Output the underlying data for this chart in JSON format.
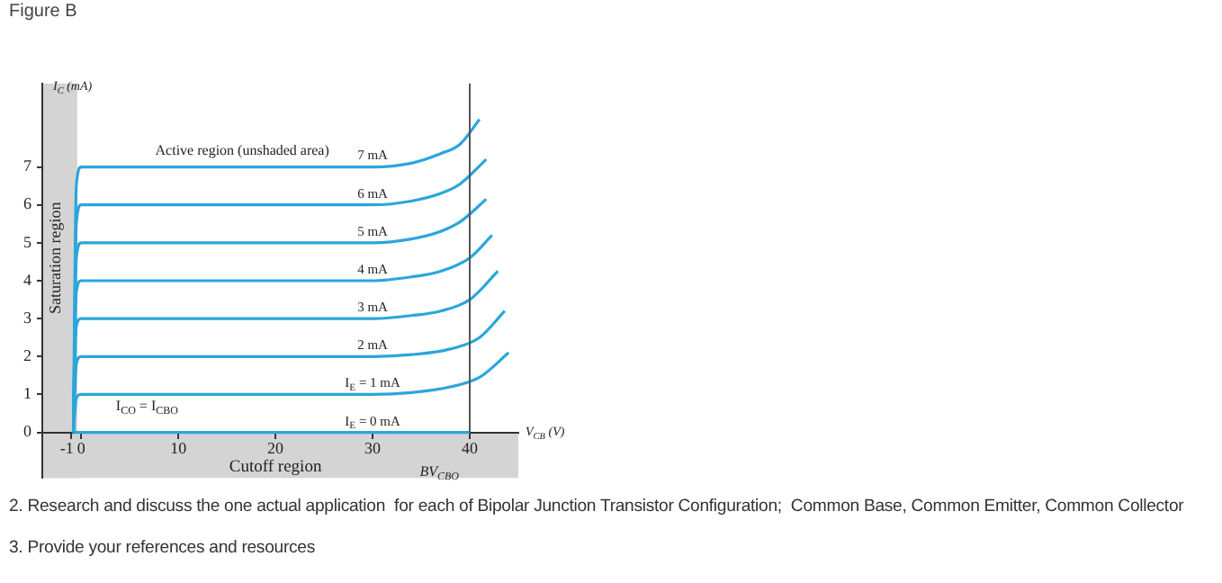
{
  "chart_data": {
    "type": "line",
    "title": "Figure B",
    "xlabel": "V$_{CB}$ (V)",
    "ylabel": "I$_{C}$ (mA)",
    "xlim": [
      -4,
      45
    ],
    "ylim": [
      -1.2,
      9.2
    ],
    "xticks": [
      -1,
      0,
      10,
      20,
      30,
      40
    ],
    "yticks": [
      0,
      1,
      2,
      3,
      4,
      5,
      6,
      7
    ],
    "grid": false,
    "legend": false,
    "marker": "none",
    "line_style": "solid",
    "series": [
      {
        "name": "7 mA",
        "color": "#2aa6dc",
        "x": [
          -0.8,
          -0.5,
          0,
          10,
          20,
          30,
          34,
          37,
          39,
          41
        ],
        "values": [
          0,
          6.5,
          7,
          7,
          7,
          7,
          7.1,
          7.35,
          7.6,
          8.25
        ]
      },
      {
        "name": "6 mA",
        "color": "#2aa6dc",
        "x": [
          -0.8,
          -0.5,
          0,
          10,
          20,
          30,
          34,
          37,
          39,
          41.7
        ],
        "values": [
          0,
          5.5,
          6,
          6,
          6,
          6,
          6.1,
          6.3,
          6.55,
          7.2
        ]
      },
      {
        "name": "5 mA",
        "color": "#2aa6dc",
        "x": [
          -0.8,
          -0.5,
          0,
          10,
          20,
          30,
          34,
          37,
          39,
          41.7
        ],
        "values": [
          0,
          4.6,
          5,
          5,
          5,
          5,
          5.1,
          5.3,
          5.55,
          6.15
        ]
      },
      {
        "name": "4 mA",
        "color": "#2aa6dc",
        "x": [
          -0.8,
          -0.5,
          0,
          10,
          20,
          30,
          34,
          37,
          40,
          42.3
        ],
        "values": [
          0,
          3.7,
          4,
          4,
          4,
          4,
          4.1,
          4.25,
          4.6,
          5.2
        ]
      },
      {
        "name": "3 mA",
        "color": "#2aa6dc",
        "x": [
          -0.8,
          -0.5,
          0,
          10,
          20,
          30,
          34,
          37,
          40,
          42.9
        ],
        "values": [
          0,
          2.8,
          3,
          3,
          3,
          3,
          3.08,
          3.2,
          3.5,
          4.25
        ]
      },
      {
        "name": "2 mA",
        "color": "#2aa6dc",
        "x": [
          -0.8,
          -0.5,
          0,
          10,
          20,
          30,
          34,
          38,
          41,
          43.6
        ],
        "values": [
          0,
          1.8,
          2,
          2,
          2,
          2,
          2.05,
          2.2,
          2.5,
          3.2
        ]
      },
      {
        "name": "I$_{E}$ = 1 mA",
        "color": "#2aa6dc",
        "x": [
          -0.8,
          -0.5,
          0,
          10,
          20,
          30,
          34,
          38,
          41,
          44
        ],
        "values": [
          0,
          0.9,
          1,
          1,
          1,
          1,
          1.05,
          1.2,
          1.45,
          2.1
        ]
      },
      {
        "name": "I$_{E}$ = 0 mA",
        "color": "#2aa6dc",
        "x": [
          -0.8,
          0,
          10,
          20,
          30,
          40
        ],
        "values": [
          0,
          0,
          0,
          0,
          0,
          0
        ]
      }
    ],
    "bands": [
      {
        "axis": "x",
        "from": -4,
        "to": -0.4,
        "label": "Saturation region",
        "color": "#d4d4d4"
      },
      {
        "axis": "y",
        "from": -1.2,
        "to": 0,
        "label": "Cutoff region",
        "color": "#d4d4d4"
      }
    ],
    "ref_lines": [
      {
        "axis": "x",
        "value": 40,
        "label": "BV$_{CBO}$",
        "color": "#555555"
      }
    ],
    "annotations": [
      "Active region (unshaded area)",
      "I$_{CO}$ = I$_{CBO}$",
      "2. Research and discuss the one actual application  for each of Bipolar Junction Transistor Configuration;  Common Base, Common Emitter, Common Collector",
      "3. Provide your references and resources"
    ]
  }
}
